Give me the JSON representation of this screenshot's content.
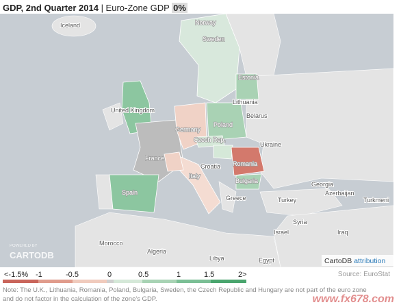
{
  "header": {
    "title": "GDP, 2nd Quarter 2014",
    "subtitle": "| Euro-Zone GDP",
    "badge": "0%"
  },
  "map": {
    "labels": [
      "Iceland",
      "Norway",
      "Sweden",
      "Estonia",
      "Lithuania",
      "United Kingdom",
      "Belarus",
      "Poland",
      "Germany",
      "Czech Rep.",
      "Ukraine",
      "France",
      "Croatia",
      "Romania",
      "Italy",
      "Bulgaria",
      "Georgia",
      "Spain",
      "Azerbaijan",
      "Turkmeni",
      "Turkey",
      "Greece",
      "Syria",
      "Israel",
      "Iraq",
      "Morocco",
      "Algeria",
      "Libya",
      "Egypt"
    ]
  },
  "logo": {
    "caption": "POWERED BY",
    "text": "CARTODB"
  },
  "attribution": {
    "text": "CartoDB",
    "link": "attribution"
  },
  "legend": {
    "labels": [
      "<-1.5%",
      "-1",
      "-0.5",
      "0",
      "0.5",
      "1",
      "1.5",
      "2>"
    ]
  },
  "source": "Source: EuroStat",
  "note": [
    "Note: The U.K., Lithuania, Romania, Poland, Bulgaria, Sweden, the Czech Republic and Hungary are not part of the euro zone",
    "and do not factor in the calculation of the zone's GDP."
  ],
  "watermark": "www.fx678.com"
}
